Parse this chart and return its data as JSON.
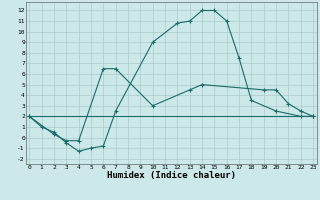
{
  "xlabel": "Humidex (Indice chaleur)",
  "background_color": "#cce8e8",
  "grid_color": "#aacccc",
  "line_color": "#1a6b6b",
  "lines": [
    {
      "x": [
        0,
        1,
        2,
        3,
        4,
        5,
        6,
        7,
        10,
        12,
        13,
        14,
        15,
        16,
        17,
        18,
        20,
        22,
        23
      ],
      "y": [
        2,
        1,
        0.5,
        -0.5,
        -1.3,
        -1.0,
        -0.8,
        2.5,
        9.0,
        10.8,
        11.0,
        12.0,
        12.0,
        11.0,
        7.5,
        3.5,
        2.5,
        2.0,
        2.0
      ],
      "marker": true
    },
    {
      "x": [
        0,
        2,
        3,
        4,
        6,
        7,
        10,
        13,
        14,
        19,
        20,
        21,
        22,
        23
      ],
      "y": [
        2,
        0.3,
        -0.3,
        -0.3,
        6.5,
        6.5,
        3.0,
        4.5,
        5.0,
        4.5,
        4.5,
        3.2,
        2.5,
        2.0
      ],
      "marker": true
    },
    {
      "x": [
        0,
        23
      ],
      "y": [
        2,
        2
      ],
      "marker": false
    }
  ],
  "xlim": [
    -0.3,
    23.3
  ],
  "ylim": [
    -2.5,
    12.8
  ],
  "xticks": [
    0,
    1,
    2,
    3,
    4,
    5,
    6,
    7,
    8,
    9,
    10,
    11,
    12,
    13,
    14,
    15,
    16,
    17,
    18,
    19,
    20,
    21,
    22,
    23
  ],
  "yticks": [
    -2,
    -1,
    0,
    1,
    2,
    3,
    4,
    5,
    6,
    7,
    8,
    9,
    10,
    11,
    12
  ]
}
